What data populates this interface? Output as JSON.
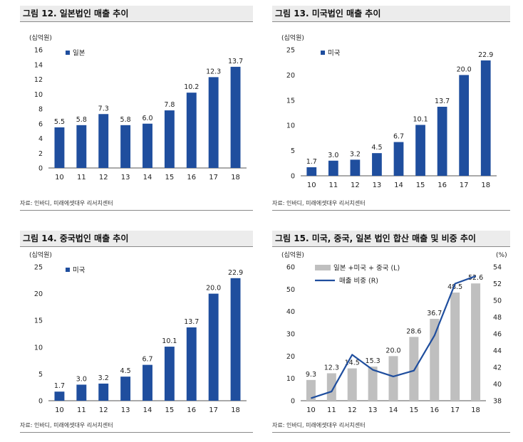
{
  "panels": [
    {
      "figure_title": "그림 12. 일본법인 매출 추이",
      "source": "자료: 인바디, 미래에셋대우 리서치센터"
    },
    {
      "figure_title": "그림 13. 미국법인 매출 추이",
      "source": "자료: 인바디, 미래에셋대우 리서치센터"
    },
    {
      "figure_title": "그림 14. 중국법인 매출 추이",
      "source": "자료: 인바디, 미래에셋대우 리서치센터"
    },
    {
      "figure_title": "그림 15. 미국, 중국, 일본 법인 합산 매출 및 비중 추이",
      "source": "자료: 인바디, 미래에셋대우 리서치센터"
    }
  ],
  "colors": {
    "bar_blue": "#1f4e9e",
    "bar_gray": "#bfbfbf",
    "line_blue": "#1f4e9e"
  },
  "chart_data": [
    {
      "type": "bar",
      "categories": [
        "10",
        "11",
        "12",
        "13",
        "14",
        "15",
        "16",
        "17",
        "18"
      ],
      "series": [
        {
          "name": "일본",
          "values": [
            5.5,
            5.8,
            7.3,
            5.8,
            6.0,
            7.8,
            10.2,
            12.3,
            13.7
          ]
        }
      ],
      "value_labels": [
        "5.5",
        "5.8",
        "7.3",
        "5.8",
        "6.0",
        "7.8",
        "10.2",
        "12.3",
        "13.7"
      ],
      "ylabel": "(십억원)",
      "ylim": [
        0,
        16
      ],
      "yticks": [
        0,
        2,
        4,
        6,
        8,
        10,
        12,
        14,
        16
      ],
      "legend": "top-left"
    },
    {
      "type": "bar",
      "categories": [
        "10",
        "11",
        "12",
        "13",
        "14",
        "15",
        "16",
        "17",
        "18"
      ],
      "series": [
        {
          "name": "미국",
          "values": [
            1.7,
            3.0,
            3.2,
            4.5,
            6.7,
            10.1,
            13.7,
            20.0,
            22.9
          ]
        }
      ],
      "value_labels": [
        "1.7",
        "3.0",
        "3.2",
        "4.5",
        "6.7",
        "10.1",
        "13.7",
        "20.0",
        "22.9"
      ],
      "ylabel": "(십억원)",
      "ylim": [
        0,
        25
      ],
      "yticks": [
        0,
        5,
        10,
        15,
        20,
        25
      ],
      "legend": "top-left"
    },
    {
      "type": "bar",
      "categories": [
        "10",
        "11",
        "12",
        "13",
        "14",
        "15",
        "16",
        "17",
        "18"
      ],
      "series": [
        {
          "name": "미국",
          "values": [
            1.7,
            3.0,
            3.2,
            4.5,
            6.7,
            10.1,
            13.7,
            20.0,
            22.9
          ]
        }
      ],
      "value_labels": [
        "1.7",
        "3.0",
        "3.2",
        "4.5",
        "6.7",
        "10.1",
        "13.7",
        "20.0",
        "22.9"
      ],
      "ylabel": "(십억원)",
      "ylim": [
        0,
        25
      ],
      "yticks": [
        0,
        5,
        10,
        15,
        20,
        25
      ],
      "legend": "top-left"
    },
    {
      "type": "bar",
      "categories": [
        "10",
        "11",
        "12",
        "13",
        "14",
        "15",
        "16",
        "17",
        "18"
      ],
      "series": [
        {
          "name": "일본 +미국 + 중국 (L)",
          "kind": "bar",
          "axis": "left",
          "values": [
            9.3,
            12.3,
            14.5,
            15.3,
            20.0,
            28.6,
            36.7,
            48.5,
            52.6
          ]
        },
        {
          "name": "매출 비중 (R)",
          "kind": "line",
          "axis": "right",
          "values": [
            38.3,
            39.1,
            43.5,
            41.7,
            40.9,
            41.6,
            45.8,
            52.0,
            52.9
          ]
        }
      ],
      "value_labels": [
        "9.3",
        "12.3",
        "14.5",
        "15.3",
        "20.0",
        "28.6",
        "36.7",
        "48.5",
        "52.6"
      ],
      "ylabel": "(십억원)",
      "ylabel_right": "(%)",
      "ylim": [
        0,
        60
      ],
      "yticks": [
        0,
        10,
        20,
        30,
        40,
        50,
        60
      ],
      "ylim_right": [
        38,
        54
      ],
      "yticks_right": [
        38,
        40,
        42,
        44,
        46,
        48,
        50,
        52,
        54
      ],
      "legend": "top-left"
    }
  ]
}
